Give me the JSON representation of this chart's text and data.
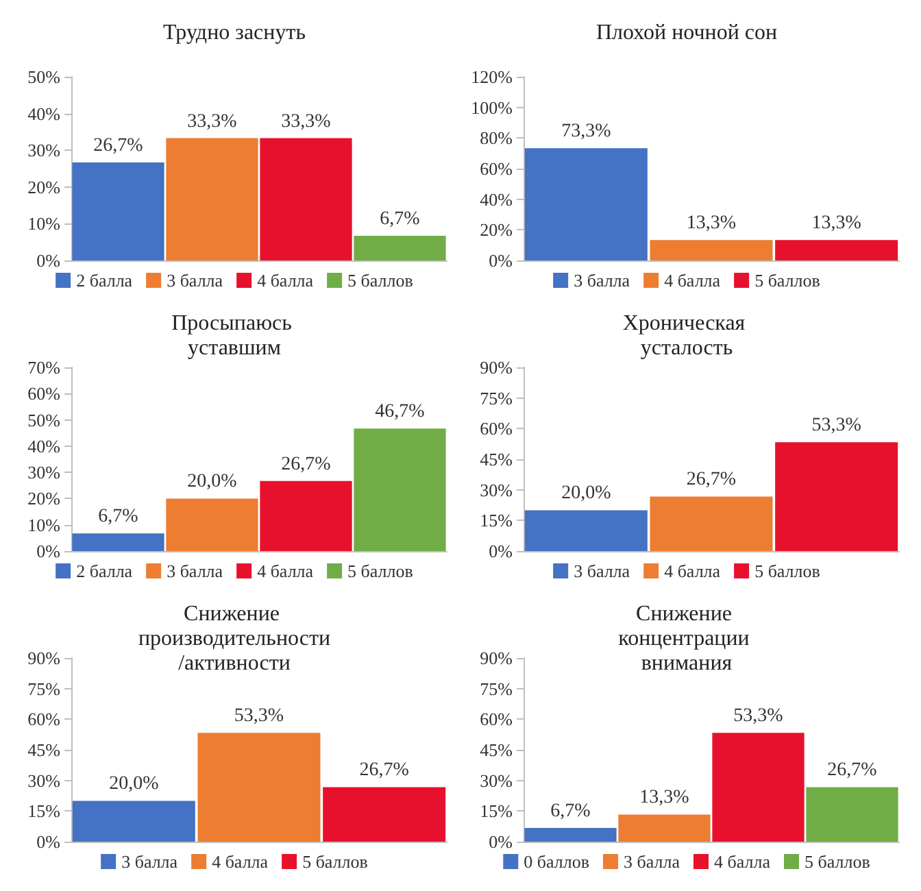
{
  "chart_data": [
    {
      "type": "bar",
      "title": "Трудно заснуть",
      "categories": [
        null,
        null,
        null,
        null
      ],
      "series": [
        {
          "name": "2 балла",
          "color": "#4472c4",
          "values": [
            26.7,
            null,
            null,
            null
          ],
          "value_labels": [
            "26,7%",
            null,
            null,
            null
          ]
        },
        {
          "name": "3 балла",
          "color": "#ed7d31",
          "values": [
            null,
            33.3,
            null,
            null
          ],
          "value_labels": [
            null,
            "33,3%",
            null,
            null
          ]
        },
        {
          "name": "4 балла",
          "color": "#e8112d",
          "values": [
            null,
            null,
            33.3,
            null
          ],
          "value_labels": [
            null,
            null,
            "33,3%",
            null
          ]
        },
        {
          "name": "5 баллов",
          "color": "#70ad47",
          "values": [
            null,
            null,
            null,
            6.7
          ],
          "value_labels": [
            null,
            null,
            null,
            "6,7%"
          ]
        }
      ],
      "ylim": [
        0,
        50
      ],
      "yticks": [
        {
          "value": 0,
          "label": "0%"
        },
        {
          "value": 10,
          "label": "10%"
        },
        {
          "value": 20,
          "label": "20%"
        },
        {
          "value": 30,
          "label": "30%"
        },
        {
          "value": 40,
          "label": "40%"
        },
        {
          "value": 50,
          "label": "50%"
        }
      ],
      "tick_labels": "y",
      "legend": "bottom",
      "grid": false
    },
    {
      "type": "bar",
      "title": "Плохой ночной сон",
      "categories": [
        null,
        null,
        null
      ],
      "series": [
        {
          "name": "3 балла",
          "color": "#4472c4",
          "values": [
            73.3,
            null,
            null
          ],
          "value_labels": [
            "73,3%",
            null,
            null
          ]
        },
        {
          "name": "4 балла",
          "color": "#ed7d31",
          "values": [
            null,
            13.3,
            null
          ],
          "value_labels": [
            null,
            "13,3%",
            null
          ]
        },
        {
          "name": "5 баллов",
          "color": "#e8112d",
          "values": [
            null,
            null,
            13.3
          ],
          "value_labels": [
            null,
            null,
            "13,3%"
          ]
        }
      ],
      "ylim": [
        0,
        120
      ],
      "yticks": [
        {
          "value": 0,
          "label": "0%"
        },
        {
          "value": 20,
          "label": "20%"
        },
        {
          "value": 40,
          "label": "40%"
        },
        {
          "value": 60,
          "label": "60%"
        },
        {
          "value": 80,
          "label": "80%"
        },
        {
          "value": 100,
          "label": "100%"
        },
        {
          "value": 120,
          "label": "120%"
        }
      ],
      "tick_labels": "y",
      "legend": "bottom",
      "grid": false
    },
    {
      "type": "bar",
      "title": "Просыпаюсь уставшим",
      "categories": [
        null,
        null,
        null,
        null
      ],
      "series": [
        {
          "name": "2 балла",
          "color": "#4472c4",
          "values": [
            6.7,
            null,
            null,
            null
          ],
          "value_labels": [
            "6,7%",
            null,
            null,
            null
          ]
        },
        {
          "name": "3 балла",
          "color": "#ed7d31",
          "values": [
            null,
            20.0,
            null,
            null
          ],
          "value_labels": [
            null,
            "20,0%",
            null,
            null
          ]
        },
        {
          "name": "4 балла",
          "color": "#e8112d",
          "values": [
            null,
            null,
            26.7,
            null
          ],
          "value_labels": [
            null,
            null,
            "26,7%",
            null
          ]
        },
        {
          "name": "5 баллов",
          "color": "#70ad47",
          "values": [
            null,
            null,
            null,
            46.7
          ],
          "value_labels": [
            null,
            null,
            null,
            "46,7%"
          ]
        }
      ],
      "ylim": [
        0,
        70
      ],
      "yticks": [
        {
          "value": 0,
          "label": "0%"
        },
        {
          "value": 10,
          "label": "10%"
        },
        {
          "value": 20,
          "label": "20%"
        },
        {
          "value": 30,
          "label": "30%"
        },
        {
          "value": 40,
          "label": "40%"
        },
        {
          "value": 50,
          "label": "50%"
        },
        {
          "value": 60,
          "label": "60%"
        },
        {
          "value": 70,
          "label": "70%"
        }
      ],
      "tick_labels": "y",
      "legend": "bottom",
      "grid": false
    },
    {
      "type": "bar",
      "title": "Хроническая усталость",
      "categories": [
        null,
        null,
        null
      ],
      "series": [
        {
          "name": "3 балла",
          "color": "#4472c4",
          "values": [
            20.0,
            null,
            null
          ],
          "value_labels": [
            "20,0%",
            null,
            null
          ]
        },
        {
          "name": "4 балла",
          "color": "#ed7d31",
          "values": [
            null,
            26.7,
            null
          ],
          "value_labels": [
            null,
            "26,7%",
            null
          ]
        },
        {
          "name": "5 баллов",
          "color": "#e8112d",
          "values": [
            null,
            null,
            53.3
          ],
          "value_labels": [
            null,
            null,
            "53,3%"
          ]
        }
      ],
      "ylim": [
        0,
        90
      ],
      "yticks": [
        {
          "value": 0,
          "label": "0%"
        },
        {
          "value": 15,
          "label": "15%"
        },
        {
          "value": 30,
          "label": "30%"
        },
        {
          "value": 45,
          "label": "45%"
        },
        {
          "value": 60,
          "label": "60%"
        },
        {
          "value": 75,
          "label": "75%"
        },
        {
          "value": 90,
          "label": "90%"
        }
      ],
      "tick_labels": "y",
      "legend": "bottom",
      "grid": false
    },
    {
      "type": "bar",
      "title": "Снижение производительности/активности",
      "categories": [
        null,
        null,
        null
      ],
      "series": [
        {
          "name": "3 балла",
          "color": "#4472c4",
          "values": [
            20.0,
            null,
            null
          ],
          "value_labels": [
            "20,0%",
            null,
            null
          ]
        },
        {
          "name": "4 балла",
          "color": "#ed7d31",
          "values": [
            null,
            53.3,
            null
          ],
          "value_labels": [
            null,
            "53,3%",
            null
          ]
        },
        {
          "name": "5 баллов",
          "color": "#e8112d",
          "values": [
            null,
            null,
            26.7
          ],
          "value_labels": [
            null,
            null,
            "26,7%"
          ]
        }
      ],
      "ylim": [
        0,
        90
      ],
      "yticks": [
        {
          "value": 0,
          "label": "0%"
        },
        {
          "value": 15,
          "label": "15%"
        },
        {
          "value": 30,
          "label": "30%"
        },
        {
          "value": 45,
          "label": "45%"
        },
        {
          "value": 60,
          "label": "60%"
        },
        {
          "value": 75,
          "label": "75%"
        },
        {
          "value": 90,
          "label": "90%"
        }
      ],
      "tick_labels": "y",
      "legend": "bottom",
      "grid": false
    },
    {
      "type": "bar",
      "title": "Снижение концентрации внимания",
      "categories": [
        null,
        null,
        null,
        null
      ],
      "series": [
        {
          "name": "0 баллов",
          "color": "#4472c4",
          "values": [
            6.7,
            null,
            null,
            null
          ],
          "value_labels": [
            "6,7%",
            null,
            null,
            null
          ]
        },
        {
          "name": "3 балла",
          "color": "#ed7d31",
          "values": [
            null,
            13.3,
            null,
            null
          ],
          "value_labels": [
            null,
            "13,3%",
            null,
            null
          ]
        },
        {
          "name": "4 балла",
          "color": "#e8112d",
          "values": [
            null,
            null,
            53.3,
            null
          ],
          "value_labels": [
            null,
            null,
            "53,3%",
            null
          ]
        },
        {
          "name": "5 баллов",
          "color": "#70ad47",
          "values": [
            null,
            null,
            null,
            26.7
          ],
          "value_labels": [
            null,
            null,
            null,
            "26,7%"
          ]
        }
      ],
      "ylim": [
        0,
        90
      ],
      "yticks": [
        {
          "value": 0,
          "label": "0%"
        },
        {
          "value": 15,
          "label": "15%"
        },
        {
          "value": 30,
          "label": "30%"
        },
        {
          "value": 45,
          "label": "45%"
        },
        {
          "value": 60,
          "label": "60%"
        },
        {
          "value": 75,
          "label": "75%"
        },
        {
          "value": 90,
          "label": "90%"
        }
      ],
      "tick_labels": "y",
      "legend": "bottom",
      "grid": false
    }
  ]
}
